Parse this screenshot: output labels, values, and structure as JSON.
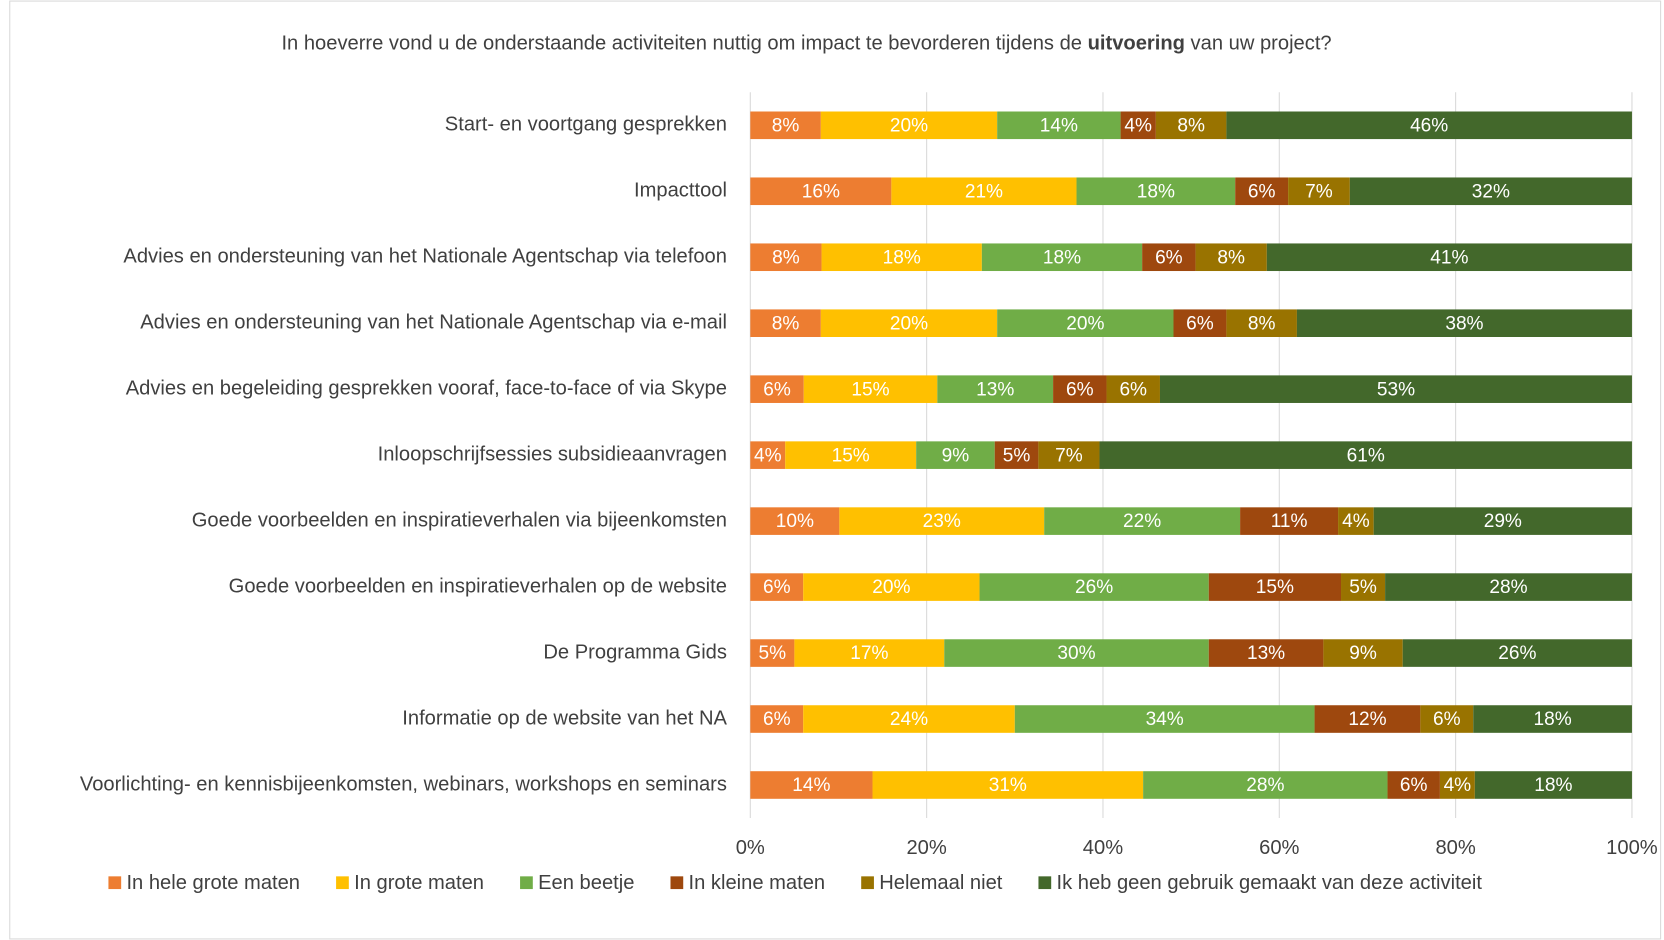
{
  "chart_data": {
    "type": "bar",
    "orientation": "horizontal",
    "stacked": "percent",
    "title": [
      "In hoeverre vond u de onderstaande activiteiten nuttig om impact te bevorderen tijdens de ",
      "uitvoering",
      " van uw project?"
    ],
    "categories": [
      "Start- en voortgang gesprekken",
      "Impacttool",
      "Advies en ondersteuning van het Nationale Agentschap via telefoon",
      "Advies en ondersteuning van het Nationale Agentschap via e-mail",
      "Advies en begeleiding gesprekken vooraf, face-to-face of via Skype",
      "Inloopschrijfsessies subsidieaanvragen",
      "Goede voorbeelden en inspiratieverhalen via bijeenkomsten",
      "Goede voorbeelden en inspiratieverhalen op de website",
      "De Programma Gids",
      "Informatie op de website van het NA",
      "Voorlichting- en kennisbijeenkomsten, webinars, workshops en seminars"
    ],
    "series": [
      {
        "name": "In hele grote maten",
        "color": "#ED7D31",
        "values": [
          8,
          16,
          8,
          8,
          6,
          4,
          10,
          6,
          5,
          6,
          14
        ],
        "value_labels": [
          "8%",
          "16%",
          "8%",
          "8%",
          "6%",
          "4%",
          "10%",
          "6%",
          "5%",
          "6%",
          "14%"
        ]
      },
      {
        "name": "In grote maten",
        "color": "#FFC000",
        "values": [
          20,
          21,
          18,
          20,
          15,
          15,
          23,
          20,
          17,
          24,
          31
        ],
        "value_labels": [
          "20%",
          "21%",
          "18%",
          "20%",
          "15%",
          "15%",
          "23%",
          "20%",
          "17%",
          "24%",
          "31%"
        ]
      },
      {
        "name": "Een beetje",
        "color": "#70AD47",
        "values": [
          14,
          18,
          18,
          20,
          13,
          9,
          22,
          26,
          30,
          34,
          28
        ],
        "value_labels": [
          "14%",
          "18%",
          "18%",
          "20%",
          "13%",
          "9%",
          "22%",
          "26%",
          "30%",
          "34%",
          "28%"
        ]
      },
      {
        "name": "In kleine maten",
        "color": "#9E480E",
        "values": [
          4,
          6,
          6,
          6,
          6,
          5,
          11,
          15,
          13,
          12,
          6
        ],
        "value_labels": [
          "4%",
          "6%",
          "6%",
          "6%",
          "6%",
          "5%",
          "11%",
          "15%",
          "13%",
          "12%",
          "6%"
        ]
      },
      {
        "name": "Helemaal niet",
        "color": "#997300",
        "values": [
          8,
          7,
          8,
          8,
          6,
          7,
          4,
          5,
          9,
          6,
          4
        ],
        "value_labels": [
          "8%",
          "7%",
          "8%",
          "8%",
          "6%",
          "7%",
          "4%",
          "5%",
          "9%",
          "6%",
          "4%"
        ]
      },
      {
        "name": "Ik heb geen gebruik gemaakt van deze activiteit",
        "color": "#43682B",
        "values": [
          46,
          32,
          41,
          38,
          53,
          61,
          29,
          28,
          26,
          18,
          18
        ],
        "value_labels": [
          "46%",
          "32%",
          "41%",
          "38%",
          "53%",
          "61%",
          "29%",
          "28%",
          "26%",
          "18%",
          "18%"
        ]
      }
    ],
    "xlim": [
      0,
      100
    ],
    "xticks": [
      {
        "value": 0,
        "label": "0%"
      },
      {
        "value": 20,
        "label": "20%"
      },
      {
        "value": 40,
        "label": "40%"
      },
      {
        "value": 60,
        "label": "60%"
      },
      {
        "value": 80,
        "label": "80%"
      },
      {
        "value": 100,
        "label": "100%"
      }
    ],
    "grid": true,
    "legend": "bottom"
  }
}
